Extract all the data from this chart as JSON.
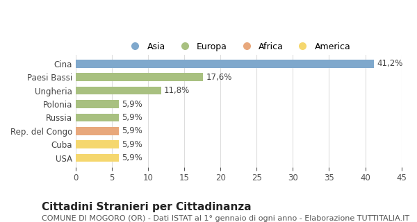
{
  "categories": [
    "USA",
    "Cuba",
    "Rep. del Congo",
    "Russia",
    "Polonia",
    "Ungheria",
    "Paesi Bassi",
    "Cina"
  ],
  "values": [
    5.9,
    5.9,
    5.9,
    5.9,
    5.9,
    11.8,
    17.6,
    41.2
  ],
  "labels": [
    "5,9%",
    "5,9%",
    "5,9%",
    "5,9%",
    "5,9%",
    "11,8%",
    "17,6%",
    "41,2%"
  ],
  "bar_colors": [
    "#f5d76e",
    "#f5d76e",
    "#e8a87c",
    "#a8c080",
    "#a8c080",
    "#a8c080",
    "#a8c080",
    "#7fa8cc"
  ],
  "legend": [
    {
      "label": "Asia",
      "color": "#7fa8cc"
    },
    {
      "label": "Europa",
      "color": "#a8c080"
    },
    {
      "label": "Africa",
      "color": "#e8a87c"
    },
    {
      "label": "America",
      "color": "#f5d76e"
    }
  ],
  "xlim": [
    0,
    45
  ],
  "xticks": [
    0,
    5,
    10,
    15,
    20,
    25,
    30,
    35,
    40,
    45
  ],
  "title": "Cittadini Stranieri per Cittadinanza",
  "subtitle": "COMUNE DI MOGORO (OR) - Dati ISTAT al 1° gennaio di ogni anno - Elaborazione TUTTITALIA.IT",
  "background_color": "#ffffff",
  "grid_color": "#dddddd",
  "bar_height": 0.6,
  "label_fontsize": 8.5,
  "title_fontsize": 11,
  "subtitle_fontsize": 8
}
